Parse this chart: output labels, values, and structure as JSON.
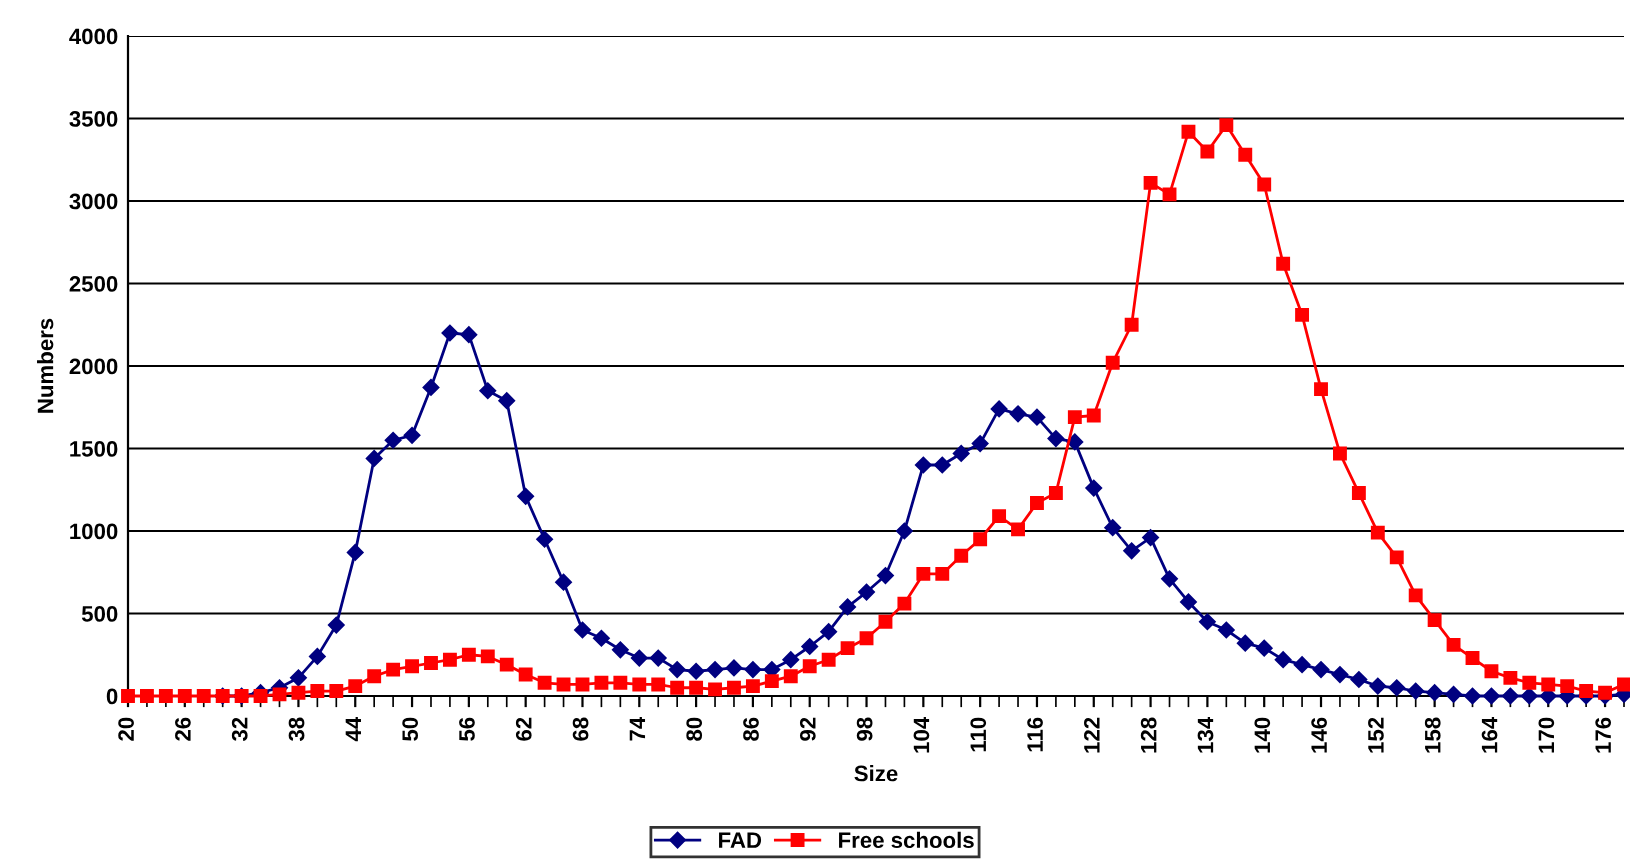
{
  "chart_data": {
    "type": "line",
    "xlabel": "Size",
    "ylabel": "Numbers",
    "x": [
      20,
      22,
      24,
      26,
      28,
      30,
      32,
      34,
      36,
      38,
      40,
      42,
      44,
      46,
      48,
      50,
      52,
      54,
      56,
      58,
      60,
      62,
      64,
      66,
      68,
      70,
      72,
      74,
      76,
      78,
      80,
      82,
      84,
      86,
      88,
      90,
      92,
      94,
      96,
      98,
      100,
      102,
      104,
      106,
      108,
      110,
      112,
      114,
      116,
      118,
      120,
      122,
      124,
      126,
      128,
      130,
      132,
      134,
      136,
      138,
      140,
      142,
      144,
      146,
      148,
      150,
      152,
      154,
      156,
      158,
      160,
      162,
      164,
      166,
      168,
      170,
      172,
      174,
      176,
      178
    ],
    "series": [
      {
        "name": "FAD",
        "color": "#000080",
        "marker": "diamond",
        "values": [
          null,
          null,
          null,
          null,
          null,
          0,
          0,
          20,
          50,
          110,
          240,
          430,
          870,
          1440,
          1550,
          1580,
          1870,
          2200,
          2190,
          1850,
          1790,
          1210,
          950,
          690,
          400,
          350,
          280,
          230,
          230,
          160,
          150,
          160,
          170,
          160,
          160,
          220,
          300,
          390,
          540,
          630,
          730,
          1000,
          1400,
          1400,
          1470,
          1530,
          1740,
          1710,
          1690,
          1560,
          1540,
          1260,
          1020,
          880,
          960,
          710,
          570,
          450,
          400,
          320,
          290,
          220,
          190,
          160,
          130,
          100,
          60,
          50,
          30,
          20,
          10,
          0,
          0,
          0,
          0,
          0,
          0,
          0,
          0,
          10
        ]
      },
      {
        "name": "Free schools",
        "color": "#ff0000",
        "marker": "square",
        "values": [
          0,
          0,
          0,
          0,
          0,
          0,
          0,
          0,
          10,
          20,
          30,
          30,
          60,
          120,
          160,
          180,
          200,
          220,
          250,
          240,
          190,
          130,
          80,
          70,
          70,
          80,
          80,
          70,
          70,
          50,
          50,
          40,
          50,
          60,
          90,
          120,
          180,
          220,
          290,
          350,
          450,
          560,
          740,
          740,
          850,
          950,
          1090,
          1010,
          1170,
          1230,
          1690,
          1700,
          2020,
          2250,
          3110,
          3040,
          3420,
          3300,
          3460,
          3280,
          3100,
          2620,
          2310,
          1860,
          1470,
          1230,
          990,
          840,
          610,
          460,
          310,
          230,
          150,
          110,
          80,
          70,
          60,
          30,
          20,
          70
        ]
      }
    ],
    "xlim": [
      20,
      178
    ],
    "xticks": [
      20,
      26,
      32,
      38,
      44,
      50,
      56,
      62,
      68,
      74,
      80,
      86,
      92,
      98,
      104,
      110,
      116,
      122,
      128,
      134,
      140,
      146,
      152,
      158,
      164,
      170,
      176
    ],
    "ylim": [
      0,
      4000
    ],
    "yticks": [
      0,
      500,
      1000,
      1500,
      2000,
      2500,
      3000,
      3500,
      4000
    ],
    "grid": "y",
    "legend": "bottom",
    "line_style": "solid"
  }
}
